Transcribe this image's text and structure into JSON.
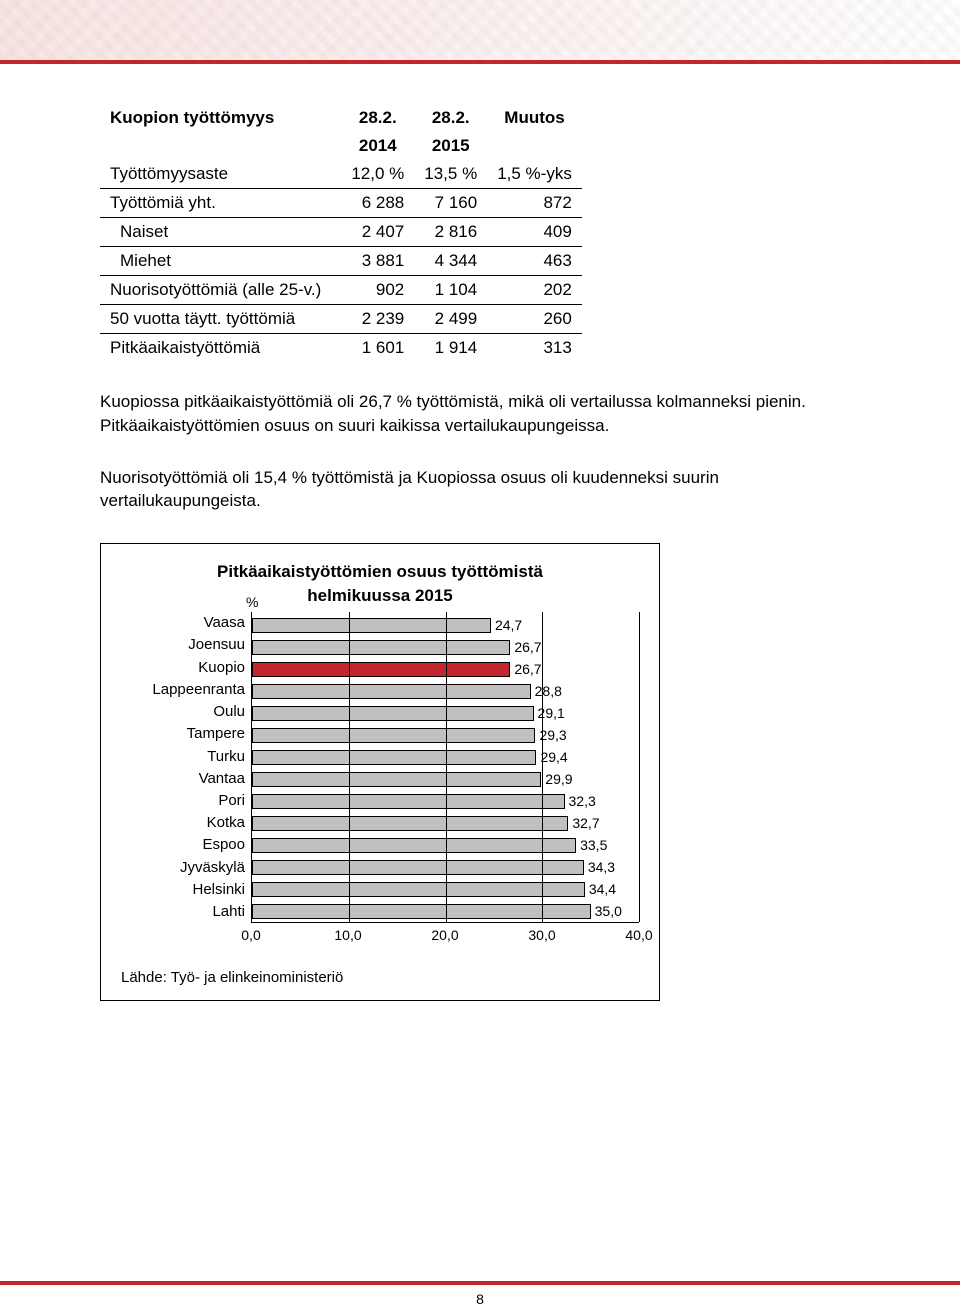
{
  "table": {
    "title": "Kuopion työttömyys",
    "col_head_1": "28.2.",
    "col_head_2": "28.2.",
    "col_head_3": "Muutos",
    "year_1": "2014",
    "year_2": "2015",
    "rows": [
      {
        "label": "Työttömyysaste",
        "v1": "12,0 %",
        "v2": "13,5 %",
        "v3": "1,5 %-yks"
      },
      {
        "label": "Työttömiä yht.",
        "v1": "6 288",
        "v2": "7 160",
        "v3": "872"
      },
      {
        "label": "Naiset",
        "v1": "2 407",
        "v2": "2 816",
        "v3": "409",
        "indent": true
      },
      {
        "label": "Miehet",
        "v1": "3 881",
        "v2": "4 344",
        "v3": "463",
        "indent": true
      },
      {
        "label": "Nuorisotyöttömiä (alle 25-v.)",
        "v1": "902",
        "v2": "1 104",
        "v3": "202"
      },
      {
        "label": "50 vuotta täytt. työttömiä",
        "v1": "2 239",
        "v2": "2 499",
        "v3": "260"
      },
      {
        "label": "Pitkäaikaistyöttömiä",
        "v1": "1 601",
        "v2": "1 914",
        "v3": "313"
      }
    ]
  },
  "para1": "Kuopiossa pitkäaikaistyöttömiä oli 26,7 % työttömistä, mikä oli vertailussa kolmanneksi pienin. Pitkäaikaistyöttömien osuus on suuri kaikissa vertailukaupungeissa.",
  "para2": "Nuorisotyöttömiä oli 15,4 % työttömistä ja Kuopiossa osuus oli kuudenneksi suurin vertailukaupungeista.",
  "chart": {
    "title_line1": "Pitkäaikaistyöttömien osuus työttömistä",
    "title_line2": "helmikuussa 2015",
    "unit": "%",
    "xmin": 0.0,
    "xmax": 40.0,
    "xticks": [
      0.0,
      10.0,
      20.0,
      30.0,
      40.0
    ],
    "xtick_labels": [
      "0,0",
      "10,0",
      "20,0",
      "30,0",
      "40,0"
    ],
    "source": "Lähde: Työ- ja elinkeinoministeriö",
    "categories": [
      {
        "label": "Vaasa",
        "value": 24.7,
        "value_label": "24,7",
        "color": "#c0c0c0"
      },
      {
        "label": "Joensuu",
        "value": 26.7,
        "value_label": "26,7",
        "color": "#c0c0c0"
      },
      {
        "label": "Kuopio",
        "value": 26.7,
        "value_label": "26,7",
        "color": "#c1272d"
      },
      {
        "label": "Lappeenranta",
        "value": 28.8,
        "value_label": "28,8",
        "color": "#c0c0c0"
      },
      {
        "label": "Oulu",
        "value": 29.1,
        "value_label": "29,1",
        "color": "#c0c0c0"
      },
      {
        "label": "Tampere",
        "value": 29.3,
        "value_label": "29,3",
        "color": "#c0c0c0"
      },
      {
        "label": "Turku",
        "value": 29.4,
        "value_label": "29,4",
        "color": "#c0c0c0"
      },
      {
        "label": "Vantaa",
        "value": 29.9,
        "value_label": "29,9",
        "color": "#c0c0c0"
      },
      {
        "label": "Pori",
        "value": 32.3,
        "value_label": "32,3",
        "color": "#c0c0c0"
      },
      {
        "label": "Kotka",
        "value": 32.7,
        "value_label": "32,7",
        "color": "#c0c0c0"
      },
      {
        "label": "Espoo",
        "value": 33.5,
        "value_label": "33,5",
        "color": "#c0c0c0"
      },
      {
        "label": "Jyväskylä",
        "value": 34.3,
        "value_label": "34,3",
        "color": "#c0c0c0"
      },
      {
        "label": "Helsinki",
        "value": 34.4,
        "value_label": "34,4",
        "color": "#c0c0c0"
      },
      {
        "label": "Lahti",
        "value": 35.0,
        "value_label": "35,0",
        "color": "#c0c0c0"
      }
    ]
  },
  "page_number": "8"
}
